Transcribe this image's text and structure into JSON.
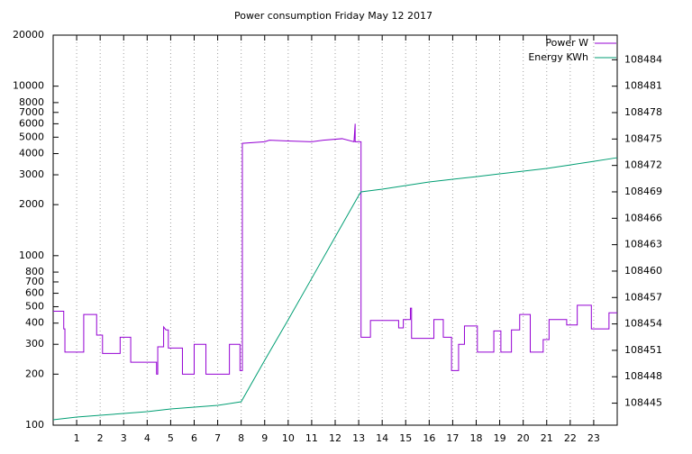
{
  "chart_data": {
    "type": "line",
    "title": "Power consumption Friday May 12 2017",
    "xlim": [
      0,
      24
    ],
    "xticks": [
      1,
      2,
      3,
      4,
      5,
      6,
      7,
      8,
      9,
      10,
      11,
      12,
      13,
      14,
      15,
      16,
      17,
      18,
      19,
      20,
      21,
      22,
      23
    ],
    "ylim": [
      100,
      20000
    ],
    "ylog": true,
    "yticks": [
      100,
      200,
      300,
      400,
      500,
      600,
      700,
      800,
      1000,
      2000,
      3000,
      4000,
      5000,
      6000,
      7000,
      8000,
      10000,
      20000
    ],
    "y2lim": [
      108442.5,
      108486.8
    ],
    "y2ticks": [
      108445,
      108448,
      108451,
      108454,
      108457,
      108460,
      108463,
      108466,
      108469,
      108472,
      108475,
      108478,
      108481,
      108484
    ],
    "grid": "x",
    "legend": "top-right",
    "series": [
      {
        "name": "Power W",
        "color": "#9400d3",
        "x": [
          0,
          0.45,
          0.45,
          0.5,
          0.5,
          1.3,
          1.3,
          1.85,
          1.85,
          2.1,
          2.1,
          2.85,
          2.85,
          3.3,
          3.3,
          4.4,
          4.4,
          4.45,
          4.45,
          4.7,
          4.7,
          4.8,
          4.9,
          4.9,
          5.5,
          5.5,
          6.0,
          6.0,
          6.5,
          6.5,
          7.5,
          7.5,
          7.95,
          7.95,
          8.05,
          8.05,
          9.0,
          9.2,
          10,
          11,
          11.5,
          12.3,
          12.8,
          12.85,
          12.85,
          13.1,
          13.1,
          13.5,
          13.5,
          14.7,
          14.7,
          14.9,
          14.9,
          15.2,
          15.2,
          15.25,
          15.25,
          16.2,
          16.2,
          16.6,
          16.6,
          16.95,
          16.95,
          17.25,
          17.25,
          17.5,
          17.5,
          18.05,
          18.05,
          18.75,
          18.75,
          19.05,
          19.05,
          19.5,
          19.5,
          19.85,
          19.85,
          20.3,
          20.3,
          20.85,
          20.85,
          21.1,
          21.1,
          21.85,
          21.85,
          22.3,
          22.3,
          22.9,
          22.9,
          23.65,
          23.65,
          24
        ],
        "values": [
          470,
          470,
          370,
          370,
          270,
          270,
          450,
          450,
          340,
          340,
          265,
          265,
          330,
          330,
          235,
          235,
          200,
          200,
          290,
          290,
          380,
          365,
          365,
          285,
          285,
          200,
          200,
          300,
          300,
          200,
          200,
          300,
          300,
          210,
          210,
          4600,
          4700,
          4800,
          4750,
          4700,
          4800,
          4900,
          4700,
          6000,
          4700,
          4700,
          330,
          330,
          415,
          415,
          375,
          375,
          420,
          420,
          490,
          490,
          325,
          325,
          420,
          420,
          330,
          330,
          210,
          210,
          300,
          300,
          385,
          385,
          270,
          270,
          360,
          360,
          270,
          270,
          365,
          365,
          450,
          450,
          270,
          270,
          320,
          320,
          420,
          420,
          390,
          390,
          510,
          510,
          370,
          370,
          460,
          460
        ]
      },
      {
        "name": "Energy KWh",
        "color": "#009e73",
        "axis": "y2",
        "x": [
          0,
          1,
          2,
          3,
          4,
          5,
          6,
          7,
          8,
          9,
          10,
          11,
          12,
          13,
          13.1,
          14,
          15,
          16,
          17,
          18,
          19,
          20,
          21,
          22,
          23,
          24
        ],
        "values": [
          108443.11,
          108443.42,
          108443.63,
          108443.83,
          108444.03,
          108444.34,
          108444.55,
          108444.75,
          108445.16,
          108449.87,
          108454.47,
          108459.17,
          108463.88,
          108468.59,
          108469.0,
          108469.3,
          108469.71,
          108470.12,
          108470.43,
          108470.73,
          108471.04,
          108471.35,
          108471.66,
          108472.06,
          108472.47,
          108472.88
        ]
      }
    ]
  }
}
